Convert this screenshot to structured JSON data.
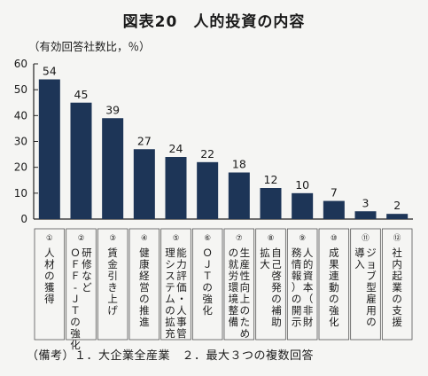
{
  "title": "図表20　人的投資の内容",
  "unit_label": "（有効回答社数比，％）",
  "footnote": "（備考）１．大企業全産業　２．最大３つの複数回答",
  "colors": {
    "bar": "#1d3557",
    "axis": "#222222",
    "box": "#555555"
  },
  "chart_data": {
    "type": "bar",
    "title": "図表20　人的投資の内容",
    "ylabel": "（有効回答社数比，％）",
    "ylim": [
      0,
      60
    ],
    "yticks": [
      0,
      10,
      20,
      30,
      40,
      50,
      60
    ],
    "grid": false,
    "categories": [
      {
        "num": "①",
        "lines": [
          "人材の獲得"
        ]
      },
      {
        "num": "②",
        "lines": [
          "研修など",
          "ＯＦＦ‐ＪＴの強化"
        ]
      },
      {
        "num": "③",
        "lines": [
          "賃金引き上げ"
        ]
      },
      {
        "num": "④",
        "lines": [
          "健康経営の推進"
        ]
      },
      {
        "num": "⑤",
        "lines": [
          "能力評価・人事管",
          "理システムの拡充"
        ]
      },
      {
        "num": "⑥",
        "lines": [
          "ＯＪＴの強化"
        ]
      },
      {
        "num": "⑦",
        "lines": [
          "生産性向上のため",
          "の就労環境整備"
        ]
      },
      {
        "num": "⑧",
        "lines": [
          "自己啓発の補助",
          "拡大"
        ]
      },
      {
        "num": "⑨",
        "lines": [
          "人的資本（非財",
          "務情報）の開示"
        ]
      },
      {
        "num": "⑩",
        "lines": [
          "成果連動の強化"
        ]
      },
      {
        "num": "⑪",
        "lines": [
          "ジョブ型雇用の",
          "導入"
        ]
      },
      {
        "num": "⑫",
        "lines": [
          "社内起業の支援"
        ]
      }
    ],
    "values": [
      54,
      45,
      39,
      27,
      24,
      22,
      18,
      12,
      10,
      7,
      3,
      2
    ]
  }
}
